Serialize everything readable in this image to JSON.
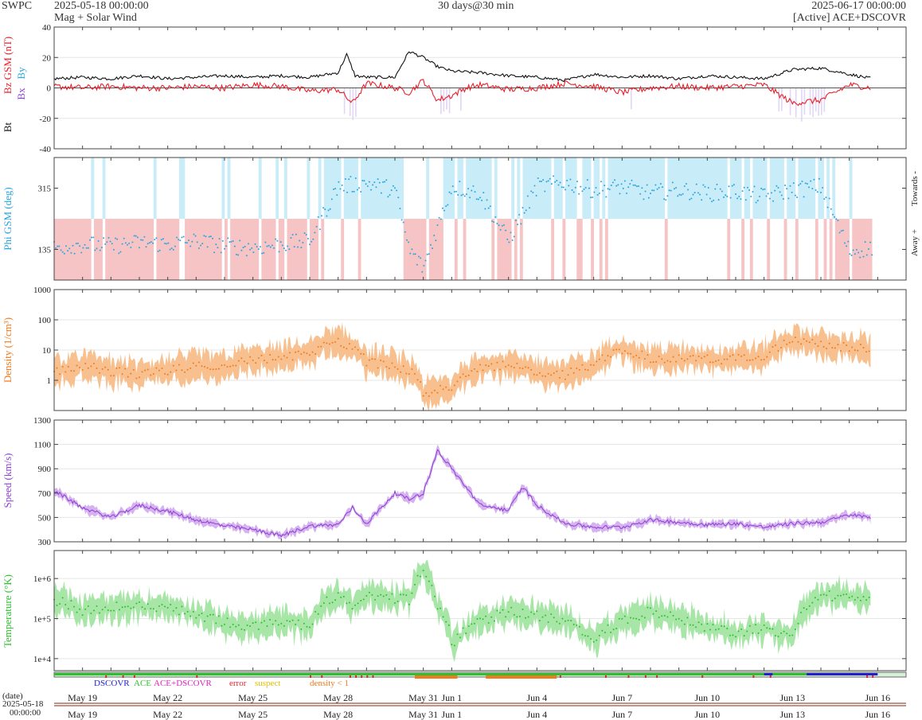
{
  "header": {
    "brand": "SWPC",
    "start_date": "2025-05-18 00:00:00",
    "subtitle": "Mag + Solar Wind",
    "span": "30 days@30 min",
    "end_date": "2025-06-17 00:00:00",
    "source": "[Active] ACE+DSCOVR"
  },
  "colors": {
    "bt": "#111111",
    "bz": "#e8202a",
    "bx": "#8b3fd1",
    "by": "#28a8e0",
    "phi": "#2aa4e0",
    "toward_fill": "#c9ecf9",
    "away_fill": "#f7c4c6",
    "density": "#f07a1e",
    "density_fill": "#f8c08e",
    "speed": "#8b3fd1",
    "speed_fill": "#d6b3f0",
    "temp": "#2ec02e",
    "temp_fill": "#a8e6a8"
  },
  "chart_data": [
    {
      "type": "line",
      "name": "mag",
      "ylabel": "Bz GSM (nT)",
      "ylabel_bt": "Bt",
      "ylabel_bx": "Bx",
      "ylabel_by": "By",
      "ylim": [
        -40,
        40
      ],
      "yticks": [
        40,
        20,
        0,
        -20,
        -40
      ],
      "series": [
        {
          "name": "Bt",
          "x": [
            0,
            1,
            2,
            3,
            4,
            5,
            6,
            7,
            8,
            9,
            10,
            10.3,
            10.6,
            11,
            12,
            12.5,
            13,
            13.5,
            14,
            15,
            16,
            17,
            18,
            19,
            20,
            21,
            22,
            23,
            24,
            25,
            26,
            27,
            28,
            28.8
          ],
          "values": [
            6,
            7,
            6,
            8,
            6,
            7,
            8,
            7,
            8,
            7,
            10,
            22,
            8,
            7,
            7,
            24,
            20,
            14,
            11,
            10,
            8,
            7,
            5,
            9,
            7,
            8,
            6,
            8,
            7,
            6,
            12,
            13,
            9,
            6
          ]
        },
        {
          "name": "Bz",
          "x": [
            0,
            1,
            2,
            3,
            4,
            5,
            6,
            7,
            8,
            9,
            10,
            10.5,
            11,
            12,
            12.5,
            13,
            13.5,
            14,
            14.5,
            15,
            16,
            17,
            18,
            19,
            20,
            21,
            22,
            23,
            24,
            25,
            26,
            27,
            28,
            28.8
          ],
          "values": [
            1,
            0,
            1,
            0,
            0,
            1,
            0,
            2,
            1,
            -2,
            -1,
            -10,
            3,
            0,
            -3,
            5,
            -8,
            -5,
            0,
            2,
            -1,
            0,
            3,
            1,
            -3,
            0,
            1,
            0,
            1,
            2,
            -10,
            -8,
            2,
            0
          ]
        }
      ]
    },
    {
      "type": "scatter",
      "name": "phi",
      "ylabel": "Phi GSM (deg)",
      "yticks": [
        315,
        135
      ],
      "ylim": [
        45,
        405
      ],
      "right_top": "Towards -",
      "right_bottom": "Away +",
      "x": [
        0,
        1,
        2,
        3,
        4,
        5,
        6,
        7,
        8,
        9,
        10,
        11,
        12,
        12.5,
        13,
        14,
        15,
        16,
        17,
        18,
        19,
        20,
        21,
        22,
        23,
        24,
        25,
        26,
        27,
        28,
        28.8
      ],
      "values": [
        140,
        150,
        145,
        155,
        150,
        160,
        145,
        140,
        150,
        160,
        320,
        330,
        310,
        135,
        80,
        320,
        300,
        160,
        320,
        330,
        310,
        320,
        300,
        310,
        300,
        305,
        290,
        310,
        320,
        130,
        140
      ]
    },
    {
      "type": "area",
      "name": "density",
      "ylabel": "Density (1/cm³)",
      "scale": "log",
      "ylim": [
        0.1,
        1000
      ],
      "yticks": [
        1000,
        100,
        10,
        1
      ],
      "x": [
        0,
        1,
        2,
        3,
        4,
        5,
        6,
        7,
        8,
        9,
        10,
        11,
        12,
        12.5,
        13,
        13.5,
        14,
        15,
        16,
        17,
        18,
        19,
        20,
        21,
        22,
        23,
        24,
        25,
        26,
        27,
        28,
        28.8
      ],
      "values": [
        2,
        3,
        2,
        1.5,
        2,
        3,
        3,
        5,
        5,
        8,
        20,
        4,
        3,
        2,
        0.3,
        0.5,
        0.4,
        3,
        3,
        2,
        1.5,
        3,
        10,
        5,
        5,
        5,
        5,
        6,
        20,
        15,
        12,
        10
      ]
    },
    {
      "type": "area",
      "name": "speed",
      "ylabel": "Speed (km/s)",
      "ylim": [
        300,
        1300
      ],
      "yticks": [
        1300,
        1100,
        900,
        700,
        500,
        300
      ],
      "x": [
        0,
        1,
        2,
        3,
        4,
        5,
        6,
        7,
        8,
        9,
        10,
        10.5,
        11,
        12,
        12.5,
        13,
        13.5,
        14,
        15,
        16,
        16.5,
        17,
        18,
        19,
        20,
        21,
        22,
        23,
        24,
        25,
        26,
        27,
        28,
        28.8
      ],
      "values": [
        720,
        580,
        500,
        600,
        550,
        480,
        430,
        400,
        350,
        430,
        440,
        580,
        450,
        700,
        650,
        700,
        1050,
        900,
        600,
        560,
        750,
        600,
        450,
        420,
        420,
        480,
        460,
        440,
        450,
        420,
        450,
        460,
        520,
        500
      ]
    },
    {
      "type": "area",
      "name": "temperature",
      "ylabel": "Temperature (°K)",
      "scale": "log",
      "ylim": [
        5000,
        5000000
      ],
      "yticks": [
        "1e+6",
        "1e+5",
        "1e+4"
      ],
      "x": [
        0,
        1,
        2,
        3,
        4,
        5,
        6,
        7,
        8,
        9,
        10,
        10.5,
        11,
        12,
        12.5,
        13,
        13.5,
        14,
        15,
        16,
        17,
        18,
        19,
        20,
        21,
        22,
        23,
        24,
        25,
        26,
        27,
        28,
        28.8
      ],
      "values": [
        300000,
        150000,
        200000,
        200000,
        180000,
        120000,
        80000,
        60000,
        80000,
        60000,
        400000,
        200000,
        400000,
        300000,
        300000,
        1500000,
        200000,
        20000,
        80000,
        150000,
        120000,
        80000,
        30000,
        80000,
        150000,
        100000,
        60000,
        40000,
        60000,
        30000,
        350000,
        400000,
        300000
      ]
    }
  ],
  "legend": {
    "dscovr": "DSCOVR",
    "ace": "ACE",
    "both": "ACE+DSCOVR",
    "error": "error",
    "suspect": "suspect",
    "density_lt1": "density < 1"
  },
  "xaxis": {
    "date_label": "(date)",
    "start_date": "2025-05-18",
    "start_time": "00:00:00",
    "ticks": [
      {
        "label": "May 19",
        "day": 1
      },
      {
        "label": "May 22",
        "day": 4
      },
      {
        "label": "May 25",
        "day": 7
      },
      {
        "label": "May 28",
        "day": 10
      },
      {
        "label": "May 31",
        "day": 13
      },
      {
        "label": "Jun 1",
        "day": 14
      },
      {
        "label": "Jun 4",
        "day": 17
      },
      {
        "label": "Jun 7",
        "day": 20
      },
      {
        "label": "Jun 10",
        "day": 23
      },
      {
        "label": "Jun 13",
        "day": 26
      },
      {
        "label": "Jun 16",
        "day": 29
      }
    ]
  }
}
